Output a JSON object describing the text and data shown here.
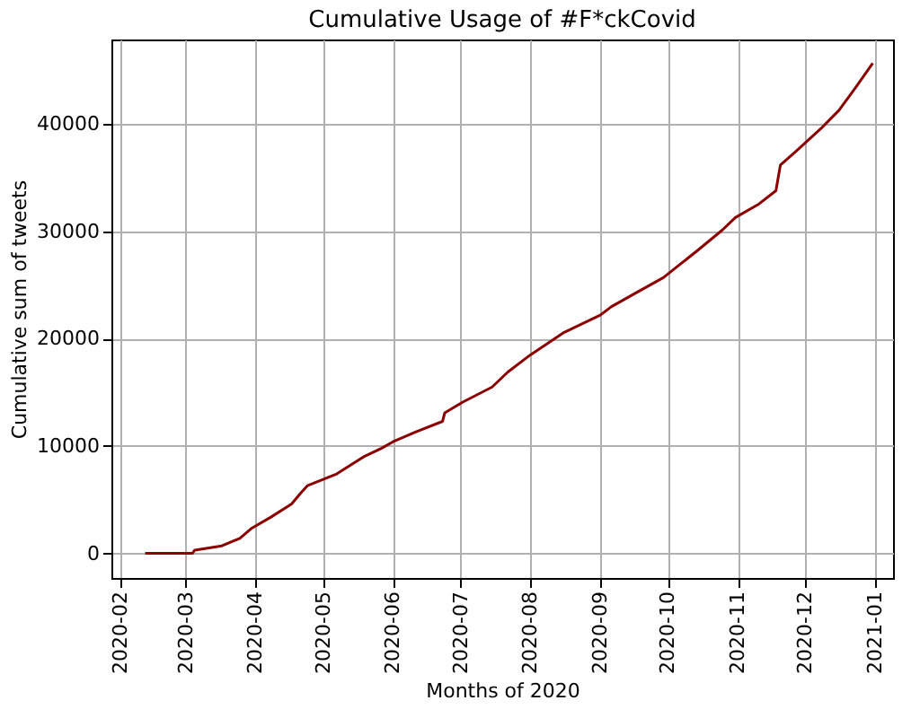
{
  "chart_data": {
    "type": "line",
    "title": "Cumulative Usage of #F*ckCovid",
    "xlabel": "Months of 2020",
    "ylabel": "Cumulative sum of tweets",
    "x": [
      "2020-02-12",
      "2020-03-04",
      "2020-03-05",
      "2020-03-17",
      "2020-03-25",
      "2020-03-30",
      "2020-04-08",
      "2020-04-17",
      "2020-04-21",
      "2020-04-24",
      "2020-05-07",
      "2020-05-19",
      "2020-05-27",
      "2020-06-01",
      "2020-06-11",
      "2020-06-23",
      "2020-06-24",
      "2020-07-02",
      "2020-07-15",
      "2020-07-22",
      "2020-08-01",
      "2020-08-16",
      "2020-09-01",
      "2020-09-06",
      "2020-09-17",
      "2020-09-29",
      "2020-10-14",
      "2020-10-25",
      "2020-10-31",
      "2020-11-10",
      "2020-11-18",
      "2020-11-20",
      "2020-11-27",
      "2020-12-08",
      "2020-12-16",
      "2020-12-23",
      "2020-12-31"
    ],
    "series": [
      {
        "color": "#8b0000",
        "values": [
          0,
          0,
          300,
          700,
          1400,
          2300,
          3400,
          4600,
          5600,
          6300,
          7400,
          9000,
          9800,
          10400,
          11300,
          12300,
          13100,
          14100,
          15500,
          16900,
          18500,
          20600,
          22200,
          23000,
          24300,
          25700,
          28200,
          30100,
          31300,
          32500,
          33800,
          36200,
          37500,
          39600,
          41300,
          43300,
          45700
        ]
      }
    ],
    "xlim": [
      "2020-01-28",
      "2021-01-09"
    ],
    "xticks": [
      "2020-02",
      "2020-03",
      "2020-04",
      "2020-05",
      "2020-06",
      "2020-07",
      "2020-08",
      "2020-09",
      "2020-10",
      "2020-11",
      "2020-12",
      "2021-01"
    ],
    "ylim": [
      -2300,
      47900
    ],
    "yticks": [
      0,
      10000,
      20000,
      30000,
      40000
    ],
    "grid": true,
    "marker": "none",
    "line_style": "solid"
  }
}
